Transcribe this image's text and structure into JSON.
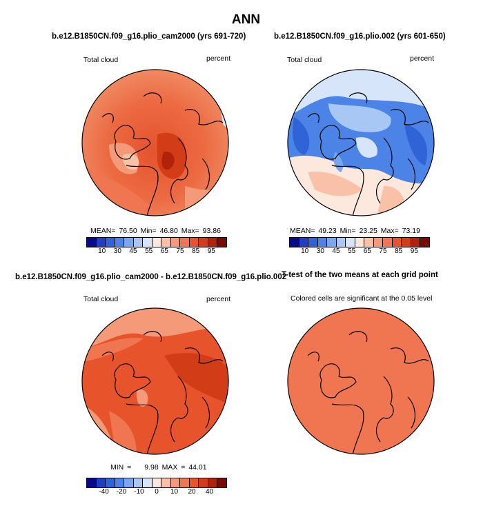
{
  "title": "ANN",
  "panels": [
    {
      "title": "b.e12.B1850CN.f09_g16.plio_cam2000 (yrs 691-720)",
      "variable": "Total cloud",
      "units": "percent",
      "stats": {
        "mean": "76.50",
        "min": "46.80",
        "max": "93.86"
      }
    },
    {
      "title": "b.e12.B1850CN.f09_g16.plio.002 (yrs 601-650)",
      "variable": "Total cloud",
      "units": "percent",
      "stats": {
        "mean": "49.23",
        "min": "23.25",
        "max": "73.19"
      }
    },
    {
      "title": "b.e12.B1850CN.f09_g16.plio_cam2000 - b.e12.B1850CN.f09_g16.plio.002",
      "variable": "Total cloud",
      "units": "percent",
      "stats": {
        "min": "9.98",
        "max": "44.01"
      }
    },
    {
      "title": "T-test of the two means at each grid point",
      "subtitle": "Colored cells are significant at the 0.05 level"
    }
  ],
  "labels": {
    "mean": "MEAN=",
    "min": "Min=",
    "max": "Max=",
    "min_cap": "MIN =",
    "max_cap": "MAX ="
  },
  "colorbar_abs": {
    "ticks": [
      "10",
      "30",
      "45",
      "55",
      "65",
      "75",
      "85",
      "95"
    ],
    "colors": [
      "#08088a",
      "#1c3fc6",
      "#2f63d6",
      "#4c83e6",
      "#7aa6ee",
      "#a9c7f4",
      "#d6e5fa",
      "#fde8de",
      "#f9c2a8",
      "#f49a78",
      "#ef7650",
      "#e7542c",
      "#d23c16",
      "#b0220a",
      "#7a0a02"
    ]
  },
  "colorbar_diff": {
    "ticks": [
      "-40",
      "-20",
      "-10",
      "0",
      "10",
      "20",
      "40"
    ],
    "colors": [
      "#08088a",
      "#1c3fc6",
      "#2f63d6",
      "#4c83e6",
      "#7aa6ee",
      "#a9c7f4",
      "#d6e5fa",
      "#fde8de",
      "#f9c2a8",
      "#f49a78",
      "#ef7650",
      "#e7542c",
      "#d23c16",
      "#b0220a",
      "#7a0a02"
    ]
  }
}
